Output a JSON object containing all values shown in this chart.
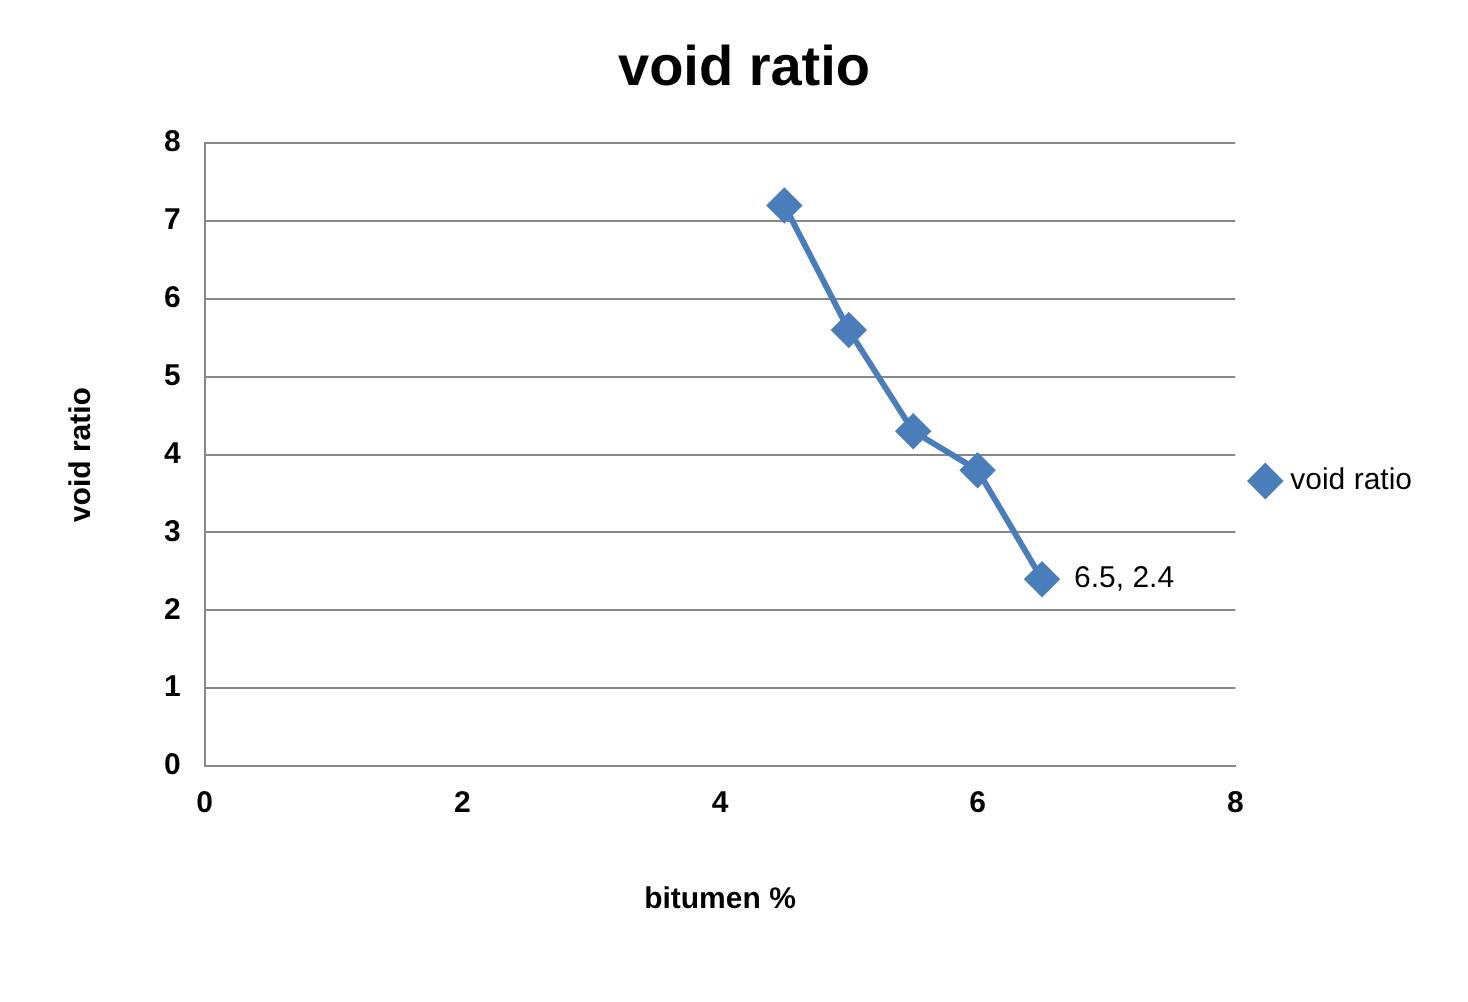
{
  "chart_data": {
    "type": "line",
    "title": "void ratio",
    "xlabel": "bitumen %",
    "ylabel": "void ratio",
    "x": [
      4.5,
      5,
      5.5,
      6,
      6.5
    ],
    "series": [
      {
        "name": "void ratio",
        "color": "#4a7ebb",
        "values": [
          7.2,
          5.6,
          4.3,
          3.8,
          2.4
        ]
      }
    ],
    "xlim": [
      0,
      8
    ],
    "xticks": [
      0,
      2,
      4,
      6,
      8
    ],
    "ylim": [
      0,
      8
    ],
    "yticks": [
      0,
      1,
      2,
      3,
      4,
      5,
      6,
      7,
      8
    ],
    "grid": "y",
    "legend": "right",
    "marker": "diamond",
    "line_style": "solid",
    "annotations": [
      {
        "text": "6.5, 2.4",
        "x": 6.5,
        "y": 2.4
      }
    ]
  }
}
